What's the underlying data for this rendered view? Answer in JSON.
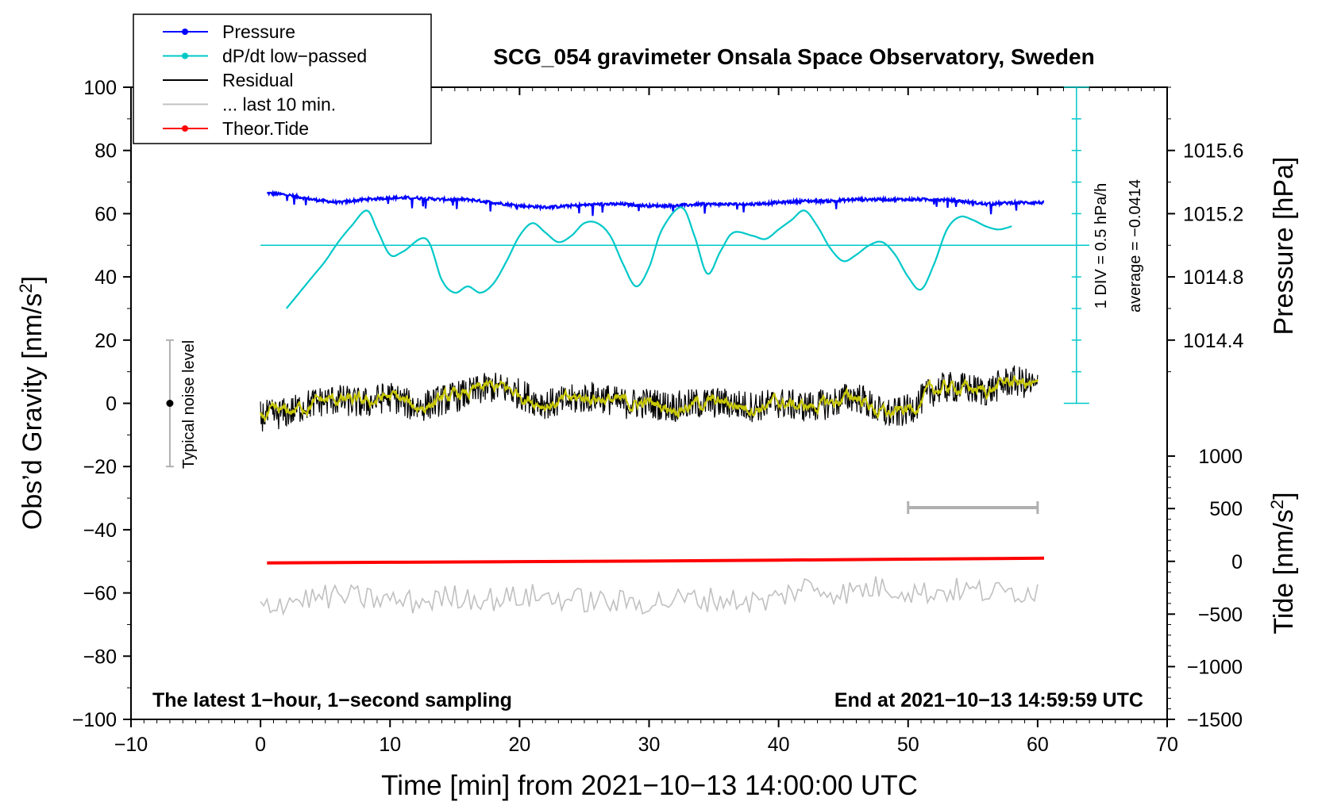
{
  "chart_data": {
    "type": "line",
    "title": "SCG_054 gravimeter Onsala Space Observatory, Sweden",
    "xlabel": "Time [min] from 2021−10−13 14:00:00 UTC",
    "ylabel_left_text": "Obs’d Gravity [nm/s",
    "ylabel_left_sup": "2",
    "ylabel_left_close": "]",
    "ylabel_right_pressure": "Pressure [hPa]",
    "ylabel_right_tide_text": "Tide [nm/s",
    "ylabel_right_tide_sup": "2",
    "ylabel_right_tide_close": "]",
    "xlim": [
      -10,
      70
    ],
    "ylim": [
      -100,
      100
    ],
    "x_ticks": [
      -10,
      0,
      10,
      20,
      30,
      40,
      50,
      60,
      70
    ],
    "x_tick_labels": [
      "−10",
      "0",
      "10",
      "20",
      "30",
      "40",
      "50",
      "60",
      "70"
    ],
    "y_ticks": [
      100,
      80,
      60,
      40,
      20,
      0,
      -20,
      -40,
      -60,
      -80,
      -100
    ],
    "y_tick_labels": [
      "100",
      "80",
      "60",
      "40",
      "20",
      "0",
      "−20",
      "−40",
      "−60",
      "−80",
      "−100"
    ],
    "pressure_axis": {
      "ticks": [
        1015.6,
        1015.2,
        1014.8,
        1014.4
      ],
      "tick_labels": [
        "1015.6",
        "1015.2",
        "1014.8",
        "1014.4"
      ],
      "gravity_equiv": [
        80,
        60,
        40,
        20
      ]
    },
    "tide_axis": {
      "ticks": [
        1000,
        500,
        0,
        -500,
        -1000,
        -1500
      ],
      "tick_labels": [
        "1000",
        "500",
        "0",
        "−500",
        "−1000",
        "−1500"
      ],
      "gravity_equiv": [
        -16.7,
        -33.3,
        -50,
        -66.7,
        -83.3,
        -100
      ]
    },
    "legend": {
      "position": "top-left",
      "entries": [
        {
          "label": "Pressure",
          "color": "#0000ff",
          "marker": true
        },
        {
          "label": "dP/dt low−passed",
          "color": "#00c8c8",
          "marker": true
        },
        {
          "label": "Residual",
          "color": "#000000",
          "marker": false
        },
        {
          "label": "... last 10 min.",
          "color": "#c0c0c0",
          "marker": false
        },
        {
          "label": "Theor.Tide",
          "color": "#ff0000",
          "marker": true
        }
      ]
    },
    "series": [
      {
        "name": "Pressure",
        "color": "#0000ff",
        "x": [
          0.5,
          2,
          4,
          6,
          8,
          10,
          12,
          14,
          16,
          18,
          20,
          22,
          24,
          26,
          28,
          30,
          32,
          34,
          36,
          38,
          40,
          42,
          44,
          46,
          48,
          50,
          52,
          54,
          56,
          58,
          60.5
        ],
        "y": [
          66.5,
          66,
          64.5,
          63.5,
          64.5,
          65,
          65,
          64.5,
          64.5,
          63.5,
          62.5,
          62,
          62.5,
          63,
          63,
          62.5,
          62.5,
          63,
          63,
          63,
          63.5,
          64,
          64,
          64.5,
          64.5,
          64.5,
          64.5,
          64,
          63,
          63.5,
          63.5
        ]
      },
      {
        "name": "dP/dt low-passed",
        "color": "#00c8c8",
        "x": [
          2,
          3,
          4,
          5,
          6,
          7,
          8.2,
          9,
          10,
          11,
          12.8,
          14,
          15,
          16,
          17,
          18,
          19,
          20,
          21,
          22,
          23,
          24,
          25,
          26,
          27,
          28,
          29,
          30,
          31,
          32.5,
          33.5,
          34.5,
          35.5,
          36.5,
          38,
          39,
          40,
          41,
          42,
          43,
          44,
          45,
          46,
          47,
          48,
          49,
          50,
          51,
          52,
          53,
          54,
          55,
          56,
          57,
          58
        ],
        "y": [
          30,
          35,
          40,
          45,
          51,
          56,
          61,
          55,
          47,
          48,
          52,
          39,
          35,
          37,
          35,
          38,
          45,
          53,
          57,
          54,
          51,
          53,
          57,
          57,
          53,
          44,
          37,
          43,
          55,
          62,
          53,
          41,
          48,
          54,
          53,
          52,
          55,
          58,
          61,
          56,
          49,
          45,
          47,
          50,
          51,
          47,
          40,
          36,
          44,
          55,
          59,
          58,
          56,
          55,
          56
        ]
      },
      {
        "name": "Residual",
        "color": "#000000",
        "x": [
          0,
          2,
          4,
          6,
          8,
          10,
          12,
          14,
          16,
          18,
          20,
          22,
          24,
          26,
          28,
          30,
          32,
          34,
          36,
          38,
          40,
          42,
          44,
          46,
          48,
          50,
          52,
          54,
          56,
          58,
          60
        ],
        "y": [
          -4,
          -3,
          0,
          1,
          0,
          2,
          -1,
          1,
          3,
          5,
          3,
          0,
          1,
          2,
          0,
          0,
          -1,
          0,
          0,
          -1,
          0,
          -1,
          0,
          2,
          -3,
          -2,
          4,
          5,
          4,
          7,
          5
        ]
      },
      {
        "name": "... last 10 min.",
        "color": "#c0c0c0",
        "x": [
          0,
          3,
          6,
          9,
          12,
          15,
          18,
          21,
          24,
          27,
          30,
          33,
          36,
          39,
          42,
          45,
          48,
          51,
          54,
          57,
          60
        ],
        "y": [
          -64,
          -62,
          -61,
          -62,
          -63,
          -61,
          -62,
          -61,
          -62,
          -63,
          -63,
          -62,
          -62,
          -63,
          -58,
          -60,
          -58,
          -60,
          -59,
          -60,
          -59
        ]
      },
      {
        "name": "Theor.Tide",
        "color": "#ff0000",
        "x": [
          0.5,
          10,
          20,
          30,
          40,
          50,
          60.5
        ],
        "y": [
          -50.5,
          -50.3,
          -50.1,
          -49.9,
          -49.6,
          -49.3,
          -49
        ]
      }
    ],
    "annotations": {
      "noise_label": "Typical noise level",
      "noise_range": [
        -20,
        20
      ],
      "noise_x": -7,
      "scale_bar_x": [
        50,
        60
      ],
      "scale_bar_y": -33,
      "div_label": "1 DIV = 0.5 hPa/h",
      "average_label": "average = −0.0414",
      "dpdt_zero_line": 50,
      "dpdt_scale_x": 63,
      "footer_left": "The latest 1−hour, 1−second sampling",
      "footer_right": "End at 2021−10−13 14:59:59 UTC"
    }
  }
}
